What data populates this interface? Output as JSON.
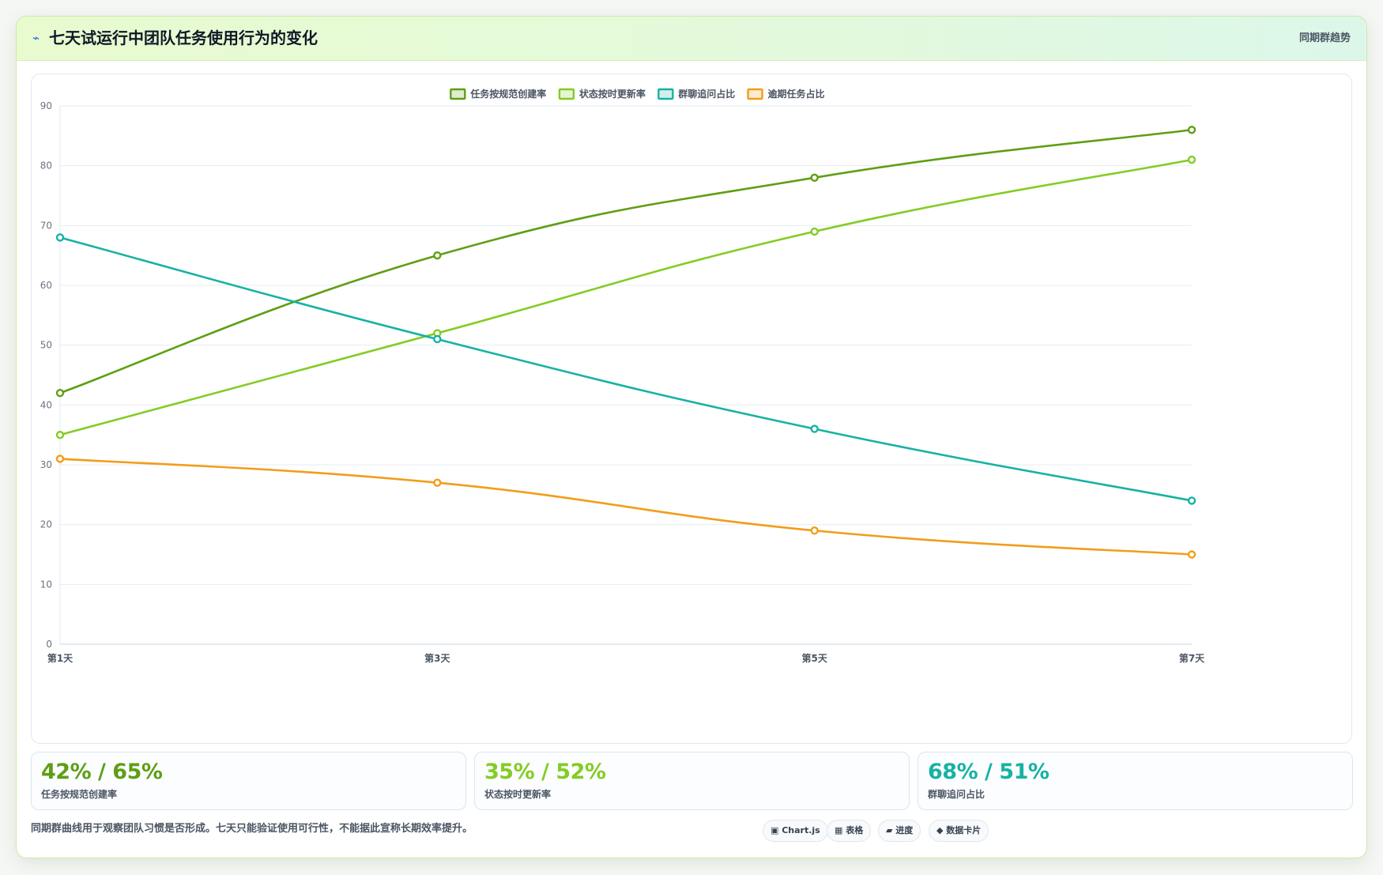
{
  "header": {
    "icon": "lightning-icon",
    "title": "七天试运行中团队任务使用行为的变化",
    "badge": "同期群趋势"
  },
  "chart_data": {
    "type": "line",
    "title": "",
    "xlabel": "",
    "ylabel": "",
    "categories": [
      "第1天",
      "第3天",
      "第5天",
      "第7天"
    ],
    "ylim": [
      0,
      90
    ],
    "yticks": [
      0,
      10,
      20,
      30,
      40,
      50,
      60,
      70,
      80,
      90
    ],
    "grid": true,
    "legend_position": "top-center",
    "series": [
      {
        "name": "任务按规范创建率",
        "color": "#5f9e14",
        "values": [
          42,
          65,
          78,
          86
        ]
      },
      {
        "name": "状态按时更新率",
        "color": "#84cc24",
        "values": [
          35,
          52,
          69,
          81
        ]
      },
      {
        "name": "群聊追问占比",
        "color": "#17b2a3",
        "values": [
          68,
          51,
          36,
          24
        ]
      },
      {
        "name": "逾期任务占比",
        "color": "#f29d1a",
        "values": [
          31,
          27,
          19,
          15
        ]
      }
    ]
  },
  "kpis": [
    {
      "value": "42% / 65%",
      "label": "任务按规范创建率",
      "color": "#5f9e14"
    },
    {
      "value": "35% / 52%",
      "label": "状态按时更新率",
      "color": "#84cc24"
    },
    {
      "value": "68% / 51%",
      "label": "群聊追问占比",
      "color": "#17b2a3"
    }
  ],
  "footer": {
    "note": "同期群曲线用于观察团队习惯是否形成。七天只能验证使用可行性，不能据此宣称长期效率提升。",
    "tags": [
      {
        "icon": "chart-icon",
        "label": "▣ Chart.js"
      },
      {
        "icon": "table-icon",
        "label": "▦ 表格"
      },
      {
        "icon": "progress-icon",
        "label": "▰ 进度"
      },
      {
        "icon": "data-card-icon",
        "label": "◆ 数据卡片"
      }
    ]
  }
}
